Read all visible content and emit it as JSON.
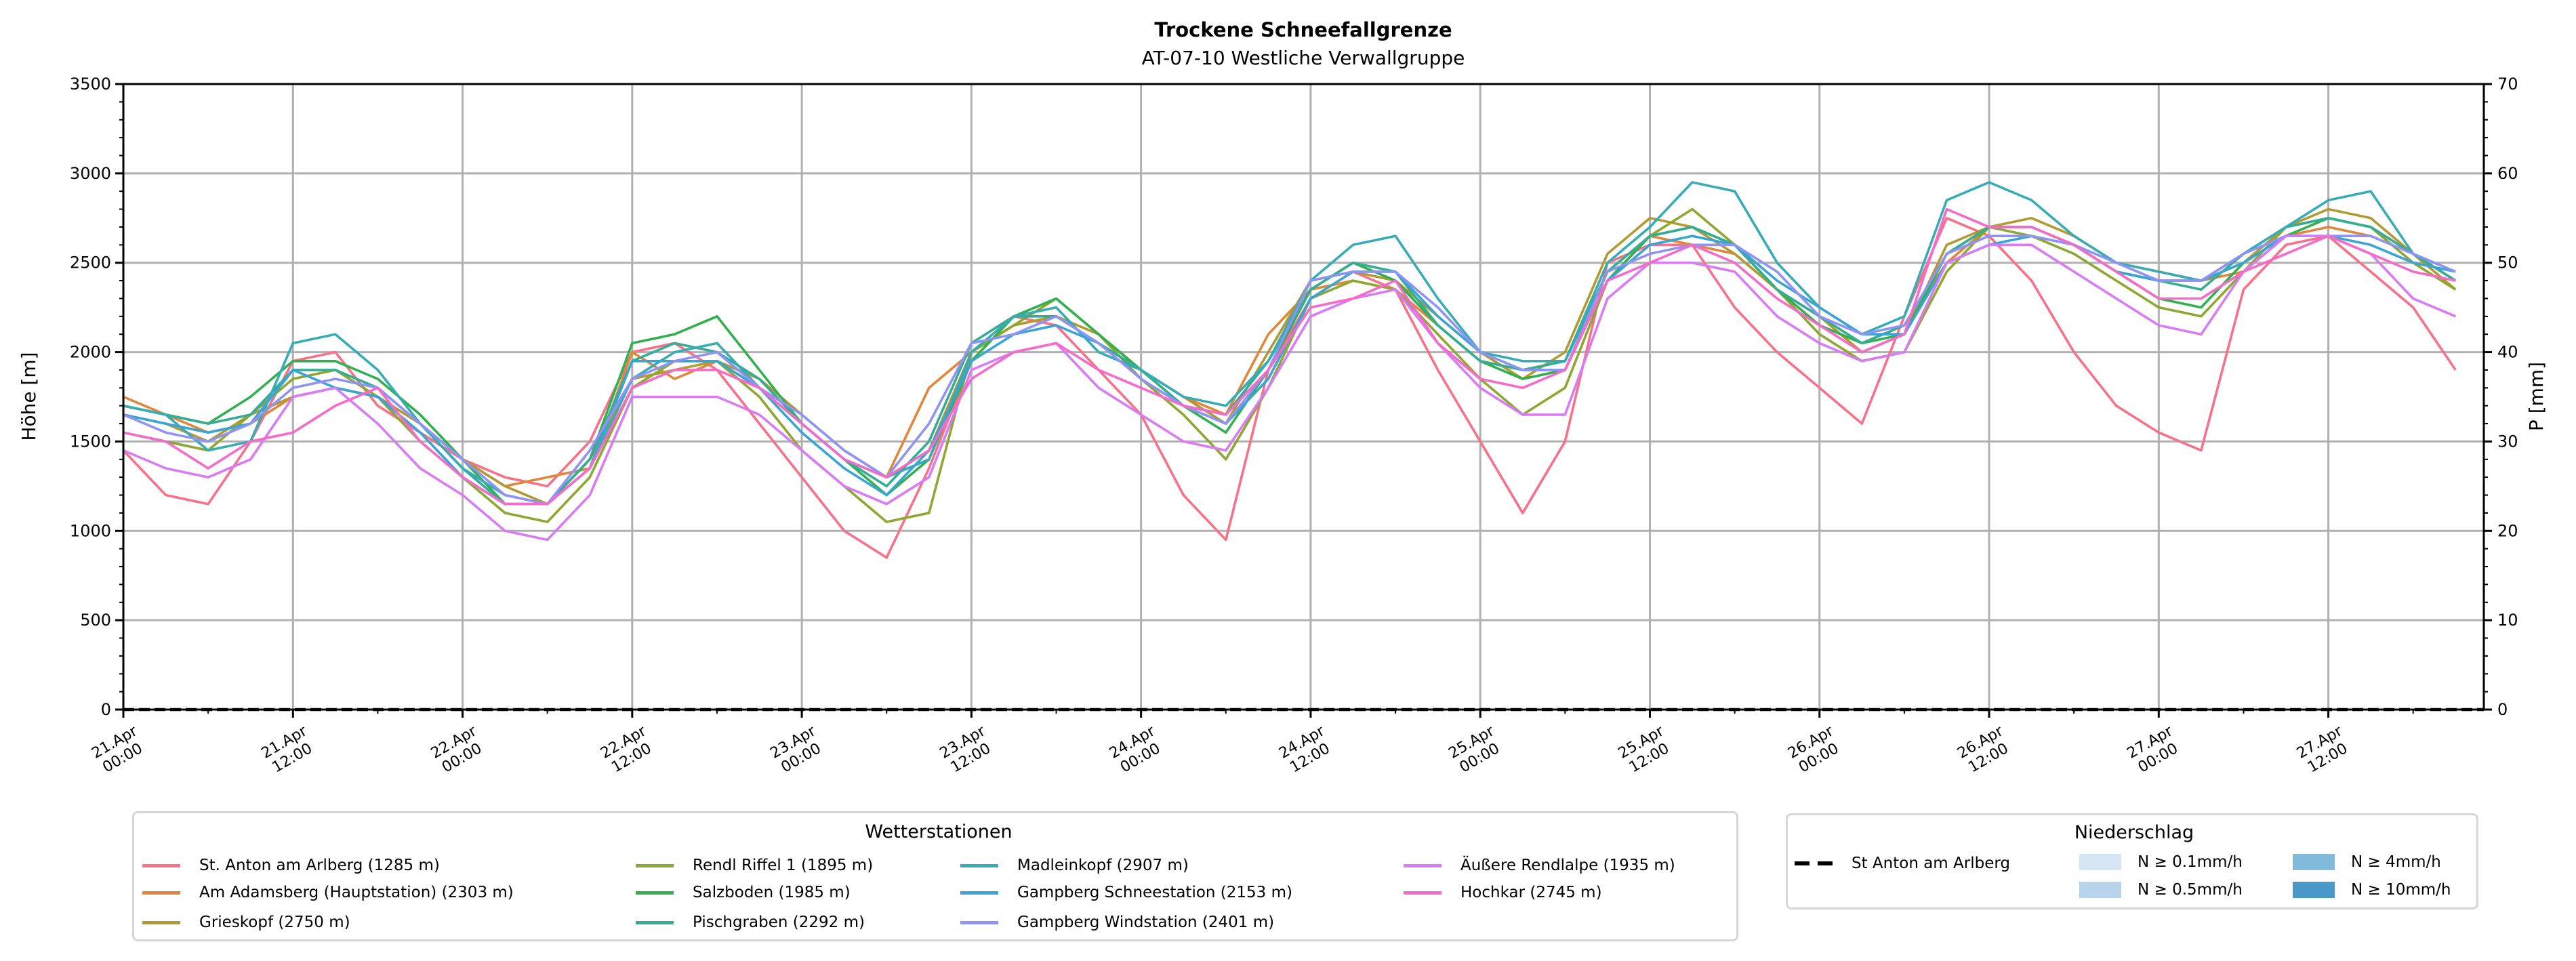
{
  "chart_data": {
    "type": "line",
    "title": "Trockene Schneefallgrenze",
    "subtitle": "AT-07-10 Westliche Verwallgruppe",
    "ylabel": "Höhe [m]",
    "ylabel_right": "P [mm]",
    "ylim": [
      0,
      3500
    ],
    "ylim_right": [
      0,
      70
    ],
    "yticks": [
      0,
      500,
      1000,
      1500,
      2000,
      2500,
      3000,
      3500
    ],
    "yticks_right": [
      0,
      10,
      20,
      30,
      40,
      50,
      60,
      70
    ],
    "x_unit": "hours since 21.Apr 00:00",
    "xlim": [
      0,
      167
    ],
    "x_start": 0,
    "x_step": 3,
    "xticks": [
      {
        "x": 0,
        "date": "21.Apr",
        "time": "00:00"
      },
      {
        "x": 12,
        "date": "21.Apr",
        "time": "12:00"
      },
      {
        "x": 24,
        "date": "22.Apr",
        "time": "00:00"
      },
      {
        "x": 36,
        "date": "22.Apr",
        "time": "12:00"
      },
      {
        "x": 48,
        "date": "23.Apr",
        "time": "00:00"
      },
      {
        "x": 60,
        "date": "23.Apr",
        "time": "12:00"
      },
      {
        "x": 72,
        "date": "24.Apr",
        "time": "00:00"
      },
      {
        "x": 84,
        "date": "24.Apr",
        "time": "12:00"
      },
      {
        "x": 96,
        "date": "25.Apr",
        "time": "00:00"
      },
      {
        "x": 108,
        "date": "25.Apr",
        "time": "12:00"
      },
      {
        "x": 120,
        "date": "26.Apr",
        "time": "00:00"
      },
      {
        "x": 132,
        "date": "26.Apr",
        "time": "12:00"
      },
      {
        "x": 144,
        "date": "27.Apr",
        "time": "00:00"
      },
      {
        "x": 156,
        "date": "27.Apr",
        "time": "12:00"
      }
    ],
    "grid": true,
    "legend": {
      "title": "Wetterstationen",
      "placement": "bottom-left"
    },
    "series": [
      {
        "name": "St. Anton am Arlberg (1285 m)",
        "color": "#f77189",
        "values": [
          1450,
          1200,
          1150,
          1500,
          1950,
          2000,
          1700,
          1550,
          1400,
          1300,
          1250,
          1500,
          2000,
          2050,
          1900,
          1600,
          1300,
          1000,
          850,
          1350,
          1950,
          2200,
          2150,
          1900,
          1650,
          1200,
          950,
          1900,
          2300,
          2450,
          2350,
          1900,
          1500,
          1100,
          1500,
          2500,
          2600,
          2600,
          2250,
          2000,
          1800,
          1600,
          2200,
          2750,
          2650,
          2400,
          2000,
          1700,
          1550,
          1450,
          2350,
          2600,
          2650,
          2450,
          2250,
          1900
        ]
      },
      {
        "name": "Am Adamsberg (Hauptstation) (2303 m)",
        "color": "#e0873a",
        "values": [
          1750,
          1650,
          1550,
          1600,
          1750,
          1800,
          1750,
          1600,
          1400,
          1250,
          1300,
          1350,
          2000,
          1850,
          1950,
          1800,
          1600,
          1400,
          1300,
          1800,
          2000,
          2150,
          2200,
          2050,
          1900,
          1750,
          1650,
          2100,
          2350,
          2400,
          2350,
          2150,
          1950,
          1900,
          1950,
          2450,
          2650,
          2600,
          2550,
          2350,
          2150,
          2050,
          2150,
          2500,
          2700,
          2700,
          2600,
          2450,
          2400,
          2400,
          2450,
          2650,
          2700,
          2650,
          2550,
          2400
        ]
      },
      {
        "name": "Grieskopf (2750 m)",
        "color": "#b29a32",
        "values": [
          1650,
          1600,
          1500,
          1650,
          1750,
          1800,
          1750,
          1600,
          1400,
          1250,
          1150,
          1400,
          1850,
          1900,
          1950,
          1850,
          1650,
          1450,
          1300,
          1450,
          2000,
          2150,
          2200,
          2100,
          1900,
          1750,
          1600,
          2000,
          2400,
          2450,
          2400,
          2200,
          2000,
          1850,
          2000,
          2550,
          2750,
          2700,
          2550,
          2350,
          2200,
          2000,
          2100,
          2600,
          2700,
          2750,
          2650,
          2500,
          2450,
          2400,
          2500,
          2700,
          2800,
          2750,
          2550,
          2350
        ]
      },
      {
        "name": "Rendl Riffel 1 (1895 m)",
        "color": "#8ea632",
        "values": [
          1550,
          1500,
          1450,
          1650,
          1850,
          1900,
          1750,
          1500,
          1300,
          1100,
          1050,
          1300,
          1800,
          1950,
          1950,
          1750,
          1450,
          1250,
          1050,
          1100,
          2000,
          2150,
          2300,
          2100,
          1850,
          1650,
          1400,
          1800,
          2300,
          2400,
          2350,
          2100,
          1850,
          1650,
          1800,
          2400,
          2650,
          2800,
          2600,
          2350,
          2100,
          1950,
          2000,
          2450,
          2700,
          2650,
          2550,
          2400,
          2250,
          2200,
          2450,
          2700,
          2750,
          2700,
          2500,
          2350
        ]
      },
      {
        "name": "Salzboden (1985 m)",
        "color": "#32b050",
        "values": [
          1700,
          1650,
          1600,
          1750,
          1950,
          1950,
          1850,
          1650,
          1400,
          1150,
          1150,
          1400,
          2050,
          2100,
          2200,
          1900,
          1600,
          1400,
          1200,
          1400,
          1950,
          2200,
          2300,
          2100,
          1900,
          1700,
          1550,
          1900,
          2350,
          2500,
          2400,
          2150,
          1950,
          1850,
          1900,
          2400,
          2650,
          2700,
          2600,
          2350,
          2150,
          2050,
          2100,
          2550,
          2700,
          2700,
          2600,
          2450,
          2300,
          2250,
          2500,
          2650,
          2750,
          2700,
          2550,
          2400
        ]
      },
      {
        "name": "Pischgraben (2292 m)",
        "color": "#35ad95",
        "values": [
          1700,
          1650,
          1600,
          1650,
          1900,
          1900,
          1800,
          1600,
          1350,
          1150,
          1150,
          1400,
          1950,
          2050,
          2000,
          1850,
          1600,
          1400,
          1250,
          1500,
          2050,
          2200,
          2200,
          2050,
          1900,
          1700,
          1650,
          1950,
          2350,
          2500,
          2450,
          2150,
          1950,
          1900,
          1950,
          2450,
          2650,
          2700,
          2600,
          2350,
          2200,
          2050,
          2150,
          2550,
          2700,
          2700,
          2600,
          2450,
          2400,
          2350,
          2550,
          2700,
          2750,
          2700,
          2550,
          2400
        ]
      },
      {
        "name": "Madleinkopf (2907 m)",
        "color": "#37acb4",
        "values": [
          1700,
          1650,
          1450,
          1500,
          2050,
          2100,
          1900,
          1600,
          1350,
          1200,
          1150,
          1350,
          1850,
          2000,
          2050,
          1800,
          1600,
          1400,
          1300,
          1400,
          2000,
          2200,
          2250,
          2000,
          1900,
          1750,
          1700,
          1950,
          2400,
          2600,
          2650,
          2300,
          2000,
          1950,
          1950,
          2500,
          2700,
          2950,
          2900,
          2500,
          2250,
          2100,
          2200,
          2850,
          2950,
          2850,
          2650,
          2500,
          2450,
          2400,
          2550,
          2700,
          2850,
          2900,
          2550,
          2450
        ]
      },
      {
        "name": "Gampberg Schneestation (2153 m)",
        "color": "#3aa5d5",
        "values": [
          1650,
          1600,
          1550,
          1600,
          1900,
          1800,
          1750,
          1550,
          1300,
          1150,
          1150,
          1350,
          1950,
          1950,
          1950,
          1800,
          1550,
          1350,
          1200,
          1450,
          1950,
          2100,
          2150,
          2050,
          1850,
          1700,
          1600,
          1850,
          2300,
          2450,
          2450,
          2200,
          2000,
          1900,
          1900,
          2400,
          2600,
          2650,
          2600,
          2400,
          2250,
          2100,
          2100,
          2500,
          2600,
          2650,
          2600,
          2450,
          2400,
          2400,
          2500,
          2650,
          2650,
          2600,
          2500,
          2450
        ]
      },
      {
        "name": "Gampberg Windstation (2401 m)",
        "color": "#8f93f4",
        "values": [
          1650,
          1550,
          1500,
          1600,
          1800,
          1850,
          1800,
          1600,
          1400,
          1200,
          1150,
          1450,
          1850,
          1950,
          2000,
          1800,
          1650,
          1450,
          1300,
          1600,
          2050,
          2100,
          2200,
          2050,
          1850,
          1700,
          1600,
          1900,
          2400,
          2450,
          2450,
          2250,
          2000,
          1900,
          1900,
          2450,
          2550,
          2600,
          2600,
          2450,
          2200,
          2100,
          2150,
          2550,
          2650,
          2650,
          2600,
          2500,
          2400,
          2400,
          2550,
          2650,
          2650,
          2650,
          2550,
          2450
        ]
      },
      {
        "name": "Äußere Rendlalpe (1935 m)",
        "color": "#d97bf4",
        "values": [
          1450,
          1350,
          1300,
          1400,
          1750,
          1800,
          1600,
          1350,
          1200,
          1000,
          950,
          1200,
          1750,
          1750,
          1750,
          1650,
          1450,
          1250,
          1150,
          1300,
          1900,
          2000,
          2050,
          1800,
          1650,
          1500,
          1450,
          1800,
          2200,
          2300,
          2350,
          2050,
          1800,
          1650,
          1650,
          2300,
          2500,
          2500,
          2450,
          2200,
          2050,
          1950,
          2000,
          2500,
          2600,
          2600,
          2450,
          2300,
          2150,
          2100,
          2450,
          2650,
          2650,
          2550,
          2300,
          2200
        ]
      },
      {
        "name": "Hochkar (2745 m)",
        "color": "#f46bc9",
        "values": [
          1550,
          1500,
          1350,
          1500,
          1550,
          1700,
          1800,
          1500,
          1300,
          1150,
          1150,
          1350,
          1800,
          1900,
          1900,
          1800,
          1600,
          1400,
          1300,
          1450,
          1850,
          2000,
          2050,
          1900,
          1800,
          1700,
          1650,
          1900,
          2250,
          2300,
          2400,
          2050,
          1850,
          1800,
          1900,
          2400,
          2500,
          2600,
          2500,
          2300,
          2150,
          2000,
          2100,
          2800,
          2700,
          2700,
          2600,
          2450,
          2300,
          2300,
          2450,
          2550,
          2650,
          2550,
          2450,
          2400
        ]
      }
    ],
    "precipitation": {
      "legend_title": "Niederschlag",
      "line_label": "St Anton am Arlberg",
      "line_values_mm": [
        0,
        0
      ],
      "classes": [
        {
          "label": "N ≥ 0.1mm/h",
          "color": "#d6e6f4"
        },
        {
          "label": "N ≥ 0.5mm/h",
          "color": "#b7d4ea"
        },
        {
          "label": "N ≥ 4mm/h",
          "color": "#82badb"
        },
        {
          "label": "N ≥ 10mm/h",
          "color": "#4a98c9"
        }
      ]
    }
  }
}
